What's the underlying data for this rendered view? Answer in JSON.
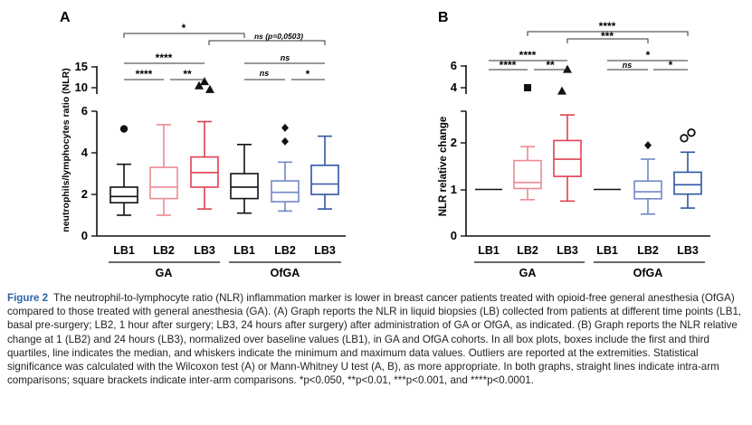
{
  "figure": {
    "panels": {
      "A": {
        "label": "A",
        "ylabel": "neutrophils/lymphocytes ratio (NLR)",
        "y_ticks_lower": [
          "0",
          "2",
          "4",
          "6"
        ],
        "y_ticks_upper": [
          "10",
          "15"
        ],
        "x_labels": [
          "LB1",
          "LB2",
          "LB3",
          "LB1",
          "LB2",
          "LB3"
        ],
        "groups": [
          "GA",
          "OfGA"
        ],
        "sig": {
          "ga_lb1_lb3_outer": "****",
          "ga_lb1_lb2": "****",
          "ga_lb2_lb3": "**",
          "top_inter": "*",
          "inter_second": "ns  (p=0,0503)",
          "ofga_lb1_lb3": "ns",
          "ofga_lb1_lb2": "ns",
          "ofga_lb2_lb3": "*"
        }
      },
      "B": {
        "label": "B",
        "ylabel": "NLR relative change",
        "y_ticks_lower": [
          "0",
          "1",
          "2",
          "3"
        ],
        "y_ticks_upper": [
          "4",
          "6"
        ],
        "x_labels": [
          "LB1",
          "LB2",
          "LB3",
          "LB1",
          "LB2",
          "LB3"
        ],
        "groups": [
          "GA",
          "OfGA"
        ],
        "sig": {
          "ga_lb1_lb3_outer": "****",
          "ga_lb1_lb2": "****",
          "ga_lb2_lb3": "**",
          "top_inter": "****",
          "inter_second": "***",
          "ofga_lb1_lb3": "*",
          "ofga_lb1_lb2": "ns",
          "ofga_lb2_lb3": "*"
        }
      }
    }
  },
  "chart_data": [
    {
      "type": "box",
      "panel": "A",
      "ylabel": "neutrophils/lymphocytes ratio (NLR)",
      "y_axis": "broken: 0–6 linear, upper segment 10–15",
      "groups": [
        {
          "name": "GA",
          "color": "#e04050",
          "light_color": "#ec8a92",
          "categories": [
            "LB1",
            "LB2",
            "LB3"
          ]
        },
        {
          "name": "OfGA",
          "color": "#2f55a4",
          "light_color": "#6f88c6",
          "categories": [
            "LB1",
            "LB2",
            "LB3"
          ]
        }
      ],
      "boxes": [
        {
          "group": "GA",
          "category": "LB1",
          "whisker_low": 1.0,
          "q1": 1.6,
          "median": 1.9,
          "q3": 2.35,
          "whisker_high": 3.45,
          "outliers": [
            {
              "y": 5.15,
              "marker": "circle"
            }
          ]
        },
        {
          "group": "GA",
          "category": "LB2",
          "whisker_low": 1.0,
          "q1": 1.8,
          "median": 2.35,
          "q3": 3.3,
          "whisker_high": 5.35,
          "outliers": []
        },
        {
          "group": "GA",
          "category": "LB3",
          "whisker_low": 1.3,
          "q1": 2.35,
          "median": 3.05,
          "q3": 3.8,
          "whisker_high": 5.5,
          "outliers": [
            {
              "y": 10.5,
              "marker": "triangle"
            },
            {
              "y": 11.5,
              "marker": "triangle"
            },
            {
              "y": 9.6,
              "marker": "triangle"
            }
          ]
        },
        {
          "group": "OfGA",
          "category": "LB1",
          "whisker_low": 1.1,
          "q1": 1.8,
          "median": 2.35,
          "q3": 3.0,
          "whisker_high": 4.4,
          "outliers": []
        },
        {
          "group": "OfGA",
          "category": "LB2",
          "whisker_low": 1.2,
          "q1": 1.65,
          "median": 2.1,
          "q3": 2.65,
          "whisker_high": 3.55,
          "outliers": [
            {
              "y": 4.55,
              "marker": "diamond"
            },
            {
              "y": 5.2,
              "marker": "diamond"
            }
          ]
        },
        {
          "group": "OfGA",
          "category": "LB3",
          "whisker_low": 1.3,
          "q1": 2.0,
          "median": 2.5,
          "q3": 3.4,
          "whisker_high": 4.8,
          "outliers": []
        }
      ]
    },
    {
      "type": "box",
      "panel": "B",
      "ylabel": "NLR relative change",
      "y_axis": "broken: 0–3 linear, upper segment 4–6",
      "groups": [
        {
          "name": "GA",
          "color": "#e04050",
          "light_color": "#ec8a92",
          "categories": [
            "LB1",
            "LB2",
            "LB3"
          ]
        },
        {
          "name": "OfGA",
          "color": "#2f55a4",
          "light_color": "#6f88c6",
          "categories": [
            "LB1",
            "LB2",
            "LB3"
          ]
        }
      ],
      "boxes": [
        {
          "group": "GA",
          "category": "LB1",
          "whisker_low": 1.0,
          "q1": 1.0,
          "median": 1.0,
          "q3": 1.0,
          "whisker_high": 1.0,
          "outliers": []
        },
        {
          "group": "GA",
          "category": "LB2",
          "whisker_low": 0.78,
          "q1": 1.02,
          "median": 1.15,
          "q3": 1.62,
          "whisker_high": 1.92,
          "outliers": [
            {
              "y": 4.0,
              "marker": "square"
            }
          ]
        },
        {
          "group": "GA",
          "category": "LB3",
          "whisker_low": 0.75,
          "q1": 1.28,
          "median": 1.65,
          "q3": 2.05,
          "whisker_high": 2.6,
          "outliers": [
            {
              "y": 3.7,
              "marker": "triangle"
            },
            {
              "y": 5.7,
              "marker": "triangle"
            }
          ]
        },
        {
          "group": "OfGA",
          "category": "LB1",
          "whisker_low": 1.0,
          "q1": 1.0,
          "median": 1.0,
          "q3": 1.0,
          "whisker_high": 1.0,
          "outliers": []
        },
        {
          "group": "OfGA",
          "category": "LB2",
          "whisker_low": 0.47,
          "q1": 0.8,
          "median": 0.95,
          "q3": 1.18,
          "whisker_high": 1.65,
          "outliers": [
            {
              "y": 1.95,
              "marker": "diamond"
            }
          ]
        },
        {
          "group": "OfGA",
          "category": "LB3",
          "whisker_low": 0.6,
          "q1": 0.9,
          "median": 1.1,
          "q3": 1.37,
          "whisker_high": 1.8,
          "outliers": [
            {
              "y": 2.1,
              "marker": "open-circle"
            },
            {
              "y": 2.22,
              "marker": "open-circle"
            }
          ]
        }
      ]
    }
  ],
  "caption": {
    "label": "Figure 2",
    "text": "The neutrophil-to-lymphocyte ratio (NLR) inflammation marker is lower in breast cancer patients treated with opioid-free general anesthesia (OfGA) compared to those treated with general anesthesia (GA). (A) Graph reports the NLR in liquid biopsies (LB) collected from patients at different time points (LB1, basal pre-surgery; LB2, 1 hour after surgery; LB3, 24 hours after surgery) after administration of GA or OfGA, as indicated. (B) Graph reports the NLR relative change at 1 (LB2) and 24 hours (LB3), normalized over baseline values (LB1), in GA and OfGA cohorts. In all box plots, boxes include the first and third quartiles, line indicates the median, and whiskers indicate the minimum and maximum data values. Outliers are reported at the extremities. Statistical significance was calculated with the Wilcoxon test (A) or Mann-Whitney U test (A, B), as more appropriate. In both graphs, straight lines indicate intra-arm comparisons; square brackets indicate inter-arm comparisons. *p<0.050, **p<0.01, ***p<0.001, and ****p<0.0001."
  }
}
